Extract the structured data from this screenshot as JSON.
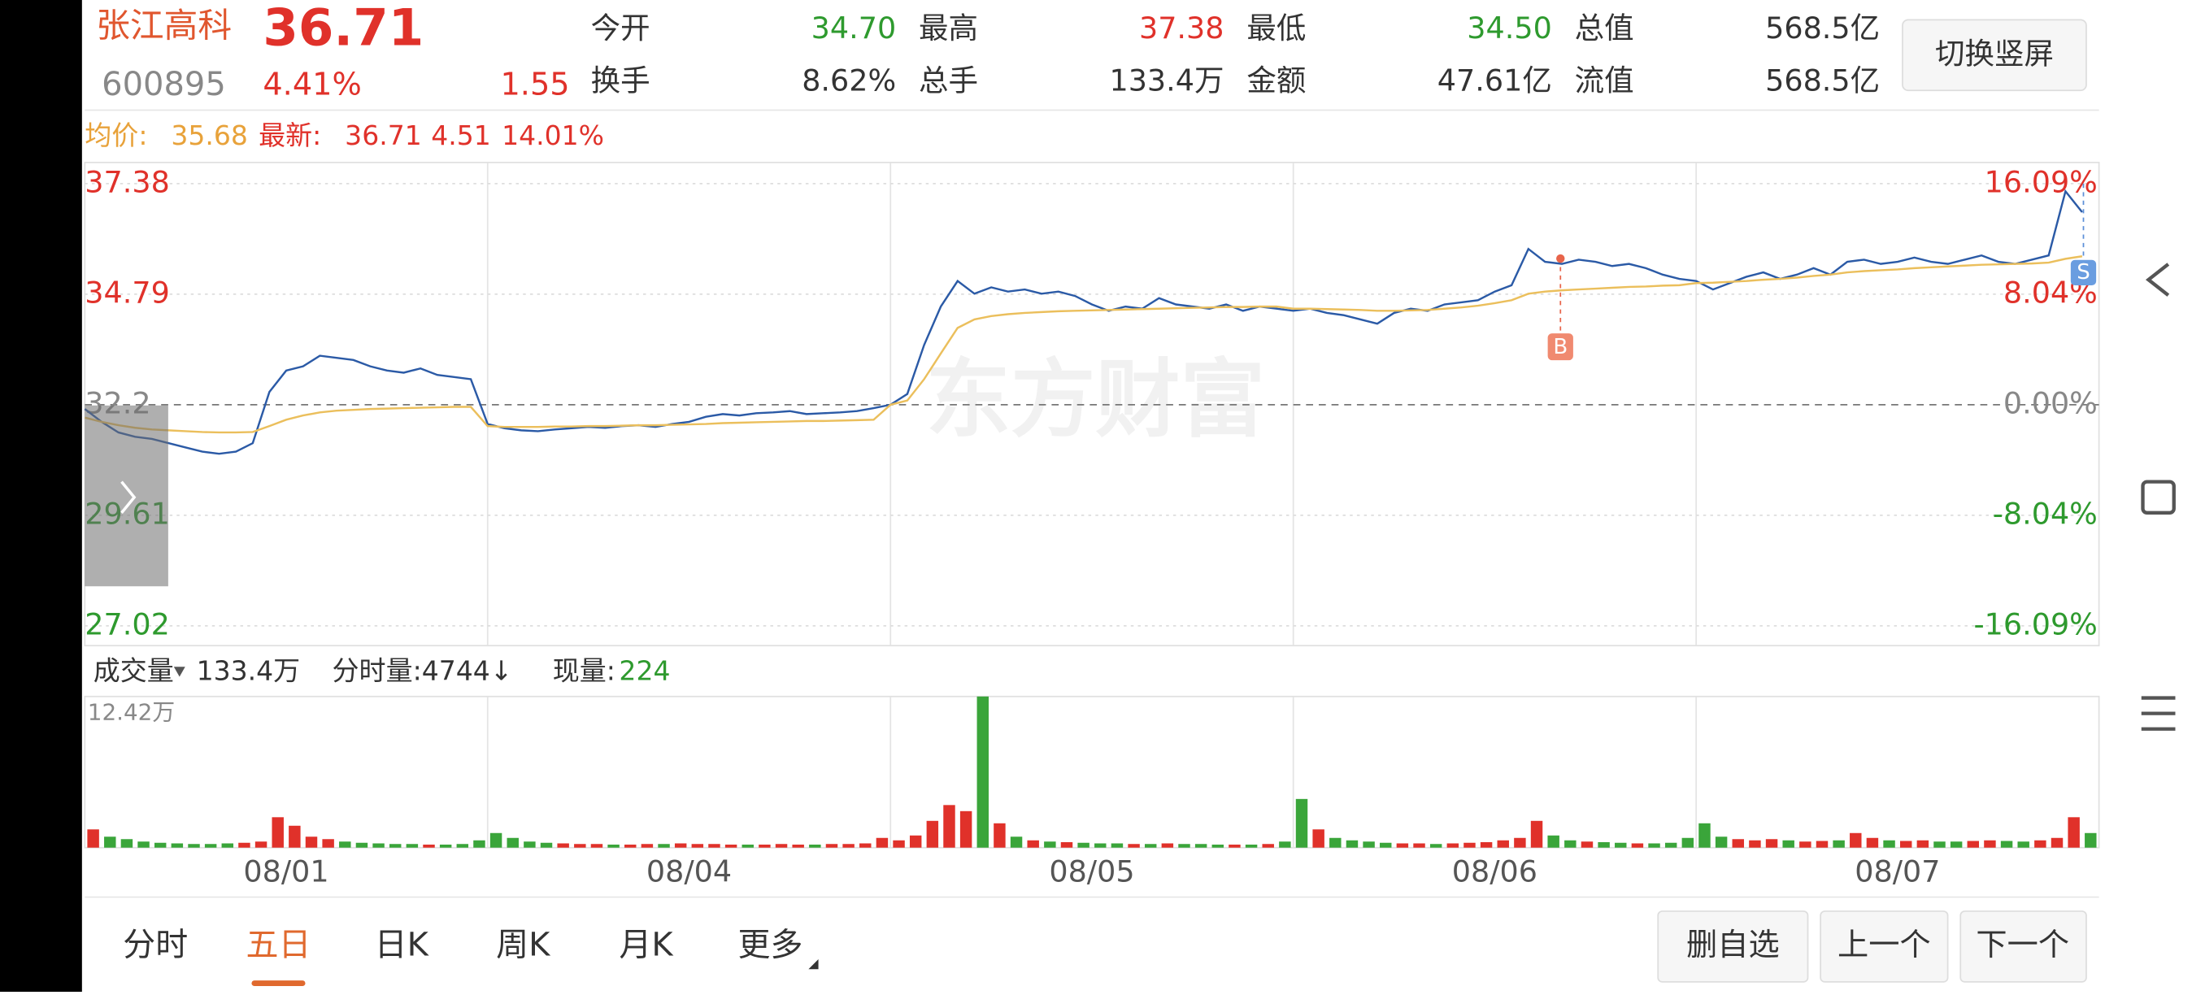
{
  "header": {
    "name": "张江高科",
    "price": "36.71",
    "code": "600895",
    "change_pct": "4.41%",
    "change": "1.55",
    "stats": [
      {
        "label": "今开",
        "value": "34.70"
      },
      {
        "label": "最高",
        "value": "37.38"
      },
      {
        "label": "最低",
        "value": "34.50"
      },
      {
        "label": "总值",
        "value": "568.5亿"
      },
      {
        "label": "换手",
        "value": "8.62%"
      },
      {
        "label": "总手",
        "value": "133.4万"
      },
      {
        "label": "金额",
        "value": "47.61亿"
      },
      {
        "label": "流值",
        "value": "568.5亿"
      }
    ],
    "button": "切换竖屏"
  },
  "info_bar": {
    "avg_label": "均价:",
    "avg": "35.68",
    "latest_label": "最新:",
    "latest": "36.71",
    "change": "4.51",
    "change_pct": "14.01%"
  },
  "watermark": "东方财富",
  "markers": [
    "B",
    "S"
  ],
  "volume_bar": {
    "label": "成交量",
    "total": "133.4万",
    "interval": "分时量:4744↓",
    "current_label": "现量:",
    "current": "224"
  },
  "tabs": [
    "分时",
    "五日",
    "日K",
    "周K",
    "月K",
    "更多"
  ],
  "buttons": [
    "删自选",
    "上一个",
    "下一个"
  ],
  "chart_data": [
    {
      "type": "line",
      "ylim": [
        27.02,
        37.38
      ],
      "yticks": [
        27.02,
        29.61,
        32.2,
        34.79,
        37.38
      ],
      "y2lim": [
        -16.09,
        16.09
      ],
      "y2ticks": [
        {
          "value": -16.09,
          "label": "-16.09%"
        },
        {
          "value": -8.04,
          "label": "-8.04%"
        },
        {
          "value": 0,
          "label": "0.00%"
        },
        {
          "value": 8.04,
          "label": "8.04%"
        },
        {
          "value": 16.09,
          "label": "16.09%"
        }
      ],
      "series": [
        {
          "color": "#2b5aa6",
          "values": [
            [
              32.1,
              31.8,
              31.55,
              31.45,
              31.4,
              31.3,
              31.2,
              31.1,
              31.05,
              31.1,
              31.3,
              32.5,
              33.0,
              33.1,
              33.35,
              33.3,
              33.25,
              33.1,
              33.0,
              32.95,
              33.05,
              32.9,
              32.85,
              32.8
            ],
            [
              31.75,
              31.65,
              31.6,
              31.58,
              31.62,
              31.65,
              31.68,
              31.66,
              31.7,
              31.72,
              31.68,
              31.75,
              31.8,
              31.92,
              31.98,
              31.95,
              32.0,
              32.02,
              32.05,
              31.98,
              32.0,
              32.02,
              32.05,
              32.12
            ],
            [
              32.2,
              32.45,
              33.6,
              34.5,
              35.1,
              34.8,
              34.95,
              34.85,
              34.9,
              34.8,
              34.85,
              34.75,
              34.55,
              34.4,
              34.5,
              34.45,
              34.7,
              34.55,
              34.5,
              34.45,
              34.55,
              34.4,
              34.5,
              34.45
            ],
            [
              34.4,
              34.45,
              34.35,
              34.3,
              34.2,
              34.1,
              34.35,
              34.45,
              34.4,
              34.55,
              34.6,
              34.65,
              34.85,
              35.0,
              35.85,
              35.55,
              35.5,
              35.6,
              35.55,
              35.45,
              35.5,
              35.4,
              35.25,
              35.15
            ],
            [
              35.1,
              34.9,
              35.05,
              35.2,
              35.3,
              35.15,
              35.25,
              35.4,
              35.25,
              35.55,
              35.6,
              35.5,
              35.55,
              35.65,
              35.55,
              35.5,
              35.6,
              35.7,
              35.55,
              35.5,
              35.6,
              35.7,
              37.2,
              36.71
            ]
          ]
        },
        {
          "color": "#ebbf5c",
          "values": [
            [
              31.9,
              31.8,
              31.72,
              31.66,
              31.62,
              31.6,
              31.58,
              31.56,
              31.55,
              31.55,
              31.56,
              31.7,
              31.85,
              31.95,
              32.02,
              32.06,
              32.08,
              32.1,
              32.11,
              32.12,
              32.13,
              32.14,
              32.15,
              32.15
            ],
            [
              31.7,
              31.68,
              31.68,
              31.68,
              31.69,
              31.69,
              31.7,
              31.7,
              31.71,
              31.72,
              31.72,
              31.73,
              31.74,
              31.75,
              31.77,
              31.78,
              31.79,
              31.8,
              31.81,
              31.82,
              31.82,
              31.83,
              31.84,
              31.85
            ],
            [
              32.2,
              32.3,
              32.8,
              33.4,
              34.0,
              34.2,
              34.28,
              34.32,
              34.35,
              34.37,
              34.39,
              34.4,
              34.41,
              34.42,
              34.43,
              34.44,
              34.45,
              34.46,
              34.47,
              34.48,
              34.49,
              34.49,
              34.5,
              34.5
            ],
            [
              34.45,
              34.45,
              34.44,
              34.43,
              34.42,
              34.4,
              34.4,
              34.41,
              34.42,
              34.45,
              34.48,
              34.52,
              34.58,
              34.65,
              34.8,
              34.85,
              34.88,
              34.9,
              34.92,
              34.94,
              34.96,
              34.97,
              34.99,
              35.0
            ],
            [
              35.05,
              35.06,
              35.08,
              35.1,
              35.13,
              35.15,
              35.18,
              35.22,
              35.25,
              35.3,
              35.33,
              35.35,
              35.37,
              35.4,
              35.42,
              35.44,
              35.46,
              35.48,
              35.49,
              35.5,
              35.51,
              35.53,
              35.62,
              35.68
            ]
          ]
        }
      ]
    },
    {
      "type": "bar",
      "categories": [
        "08/01",
        "08/04",
        "08/05",
        "08/06",
        "08/07"
      ],
      "ylim": [
        0,
        124200
      ],
      "yticks": [
        {
          "value": 124200,
          "label": "12.42万"
        }
      ],
      "up_color": "#e0312a",
      "down_color": "#3aa53a",
      "values": [
        [
          15000,
          9000,
          7000,
          5000,
          4000,
          3500,
          3000,
          3000,
          3500,
          4000,
          5000,
          25000,
          18000,
          9000,
          7000,
          5000,
          4000,
          3500,
          3000,
          3000,
          2500,
          2500,
          3000,
          6000
        ],
        [
          12000,
          8000,
          5000,
          4000,
          3500,
          3000,
          3000,
          2500,
          2500,
          3000,
          3000,
          3500,
          3000,
          3000,
          2500,
          2500,
          2500,
          3000,
          2500,
          2500,
          3000,
          3000,
          3500,
          8000
        ],
        [
          6000,
          10000,
          22000,
          35000,
          30000,
          124200,
          20000,
          9000,
          6000,
          5000,
          4500,
          4000,
          3500,
          3500,
          3000,
          3000,
          3500,
          3000,
          3000,
          2500,
          2500,
          2500,
          3000,
          5000
        ],
        [
          40000,
          15000,
          8000,
          6000,
          5000,
          4000,
          3500,
          3500,
          3000,
          3500,
          4000,
          4500,
          6000,
          8000,
          22000,
          10000,
          6000,
          5000,
          4500,
          4000,
          3500,
          3500,
          4000,
          8000
        ],
        [
          20000,
          9000,
          7000,
          6000,
          7000,
          6000,
          5000,
          5500,
          6000,
          12000,
          8000,
          6000,
          5500,
          6000,
          5000,
          5000,
          5500,
          6000,
          5500,
          5000,
          6000,
          8000,
          25000,
          12000
        ]
      ]
    }
  ]
}
